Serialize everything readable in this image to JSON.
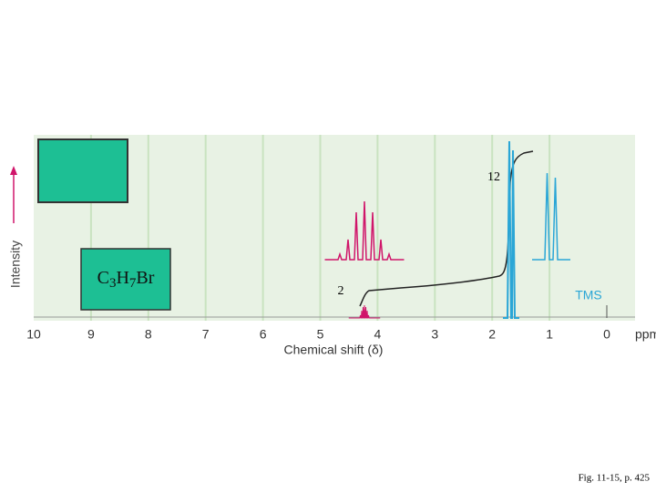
{
  "y_axis": {
    "label": "Intensity"
  },
  "x_axis": {
    "ticks": [
      "10",
      "9",
      "8",
      "7",
      "6",
      "5",
      "4",
      "3",
      "2",
      "1",
      "0"
    ],
    "unit": "ppm",
    "label": "Chemical shift (δ)"
  },
  "peak_labels": [
    "12",
    "2",
    "TMS"
  ],
  "formula": [
    "C",
    "3",
    "H",
    "7",
    "Br"
  ],
  "caption": "Fig. 11-15, p. 425"
}
